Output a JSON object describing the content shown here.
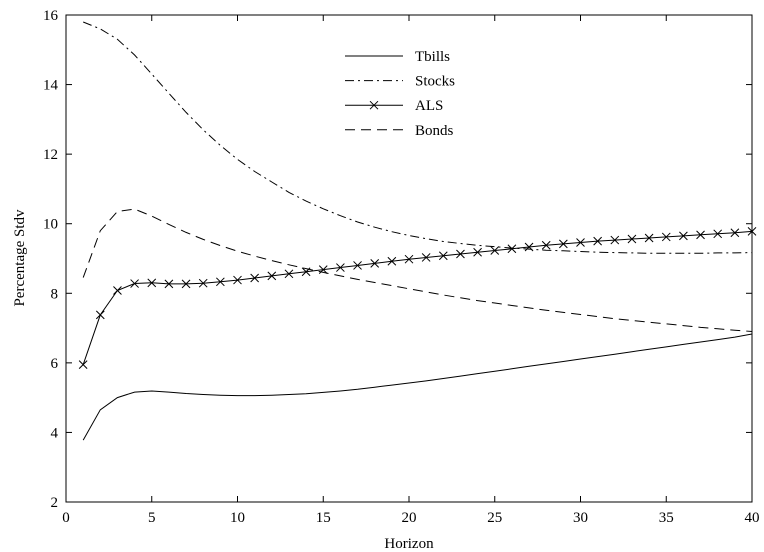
{
  "chart_data": {
    "type": "line",
    "title": "",
    "xlabel": "Horizon",
    "ylabel": "Percentage Stdv",
    "xlim": [
      0,
      40
    ],
    "ylim": [
      2,
      16
    ],
    "xticks": [
      0,
      5,
      10,
      15,
      20,
      25,
      30,
      35,
      40
    ],
    "yticks": [
      2,
      4,
      6,
      8,
      10,
      12,
      14,
      16
    ],
    "grid": false,
    "legend_position": "top-center",
    "series": [
      {
        "name": "Tbills",
        "style": "solid",
        "marker": "none",
        "x": [
          1,
          2,
          3,
          4,
          5,
          6,
          7,
          8,
          9,
          10,
          11,
          12,
          13,
          14,
          15,
          16,
          17,
          18,
          19,
          20,
          21,
          22,
          23,
          24,
          25,
          26,
          27,
          28,
          29,
          30,
          31,
          32,
          33,
          34,
          35,
          36,
          37,
          38,
          39,
          40
        ],
        "y": [
          3.78,
          4.65,
          5.0,
          5.16,
          5.19,
          5.16,
          5.12,
          5.09,
          5.07,
          5.06,
          5.06,
          5.07,
          5.09,
          5.11,
          5.15,
          5.19,
          5.24,
          5.3,
          5.36,
          5.42,
          5.48,
          5.55,
          5.62,
          5.69,
          5.76,
          5.83,
          5.9,
          5.97,
          6.04,
          6.11,
          6.18,
          6.25,
          6.32,
          6.39,
          6.46,
          6.53,
          6.6,
          6.67,
          6.74,
          6.83
        ]
      },
      {
        "name": "Stocks",
        "style": "dashdot",
        "marker": "none",
        "x": [
          1,
          2,
          3,
          4,
          5,
          6,
          7,
          8,
          9,
          10,
          11,
          12,
          13,
          14,
          15,
          16,
          17,
          18,
          19,
          20,
          21,
          22,
          23,
          24,
          25,
          26,
          27,
          28,
          29,
          30,
          31,
          32,
          33,
          34,
          35,
          36,
          37,
          38,
          39,
          40
        ],
        "y": [
          15.8,
          15.6,
          15.3,
          14.85,
          14.3,
          13.75,
          13.2,
          12.7,
          12.25,
          11.85,
          11.5,
          11.2,
          10.9,
          10.65,
          10.43,
          10.23,
          10.05,
          9.9,
          9.77,
          9.66,
          9.57,
          9.49,
          9.43,
          9.38,
          9.34,
          9.3,
          9.27,
          9.24,
          9.22,
          9.2,
          9.18,
          9.17,
          9.16,
          9.15,
          9.15,
          9.15,
          9.15,
          9.16,
          9.16,
          9.17
        ]
      },
      {
        "name": "ALS",
        "style": "solid",
        "marker": "x",
        "x": [
          1,
          2,
          3,
          4,
          5,
          6,
          7,
          8,
          9,
          10,
          11,
          12,
          13,
          14,
          15,
          16,
          17,
          18,
          19,
          20,
          21,
          22,
          23,
          24,
          25,
          26,
          27,
          28,
          29,
          30,
          31,
          32,
          33,
          34,
          35,
          36,
          37,
          38,
          39,
          40
        ],
        "y": [
          5.95,
          7.38,
          8.08,
          8.28,
          8.3,
          8.27,
          8.27,
          8.29,
          8.33,
          8.38,
          8.44,
          8.5,
          8.56,
          8.62,
          8.68,
          8.74,
          8.8,
          8.86,
          8.92,
          8.98,
          9.03,
          9.08,
          9.13,
          9.18,
          9.23,
          9.28,
          9.33,
          9.38,
          9.42,
          9.46,
          9.5,
          9.53,
          9.56,
          9.59,
          9.62,
          9.65,
          9.68,
          9.71,
          9.74,
          9.78
        ]
      },
      {
        "name": "Bonds",
        "style": "dashed",
        "marker": "none",
        "x": [
          1,
          2,
          3,
          4,
          5,
          6,
          7,
          8,
          9,
          10,
          11,
          12,
          13,
          14,
          15,
          16,
          17,
          18,
          19,
          20,
          21,
          22,
          23,
          24,
          25,
          26,
          27,
          28,
          29,
          30,
          31,
          32,
          33,
          34,
          35,
          36,
          37,
          38,
          39,
          40
        ],
        "y": [
          8.45,
          9.8,
          10.35,
          10.42,
          10.22,
          9.98,
          9.75,
          9.55,
          9.37,
          9.21,
          9.07,
          8.94,
          8.82,
          8.71,
          8.6,
          8.5,
          8.4,
          8.31,
          8.22,
          8.13,
          8.04,
          7.95,
          7.87,
          7.79,
          7.72,
          7.65,
          7.58,
          7.51,
          7.45,
          7.39,
          7.33,
          7.27,
          7.22,
          7.17,
          7.12,
          7.07,
          7.02,
          6.98,
          6.94,
          6.9
        ]
      }
    ]
  }
}
